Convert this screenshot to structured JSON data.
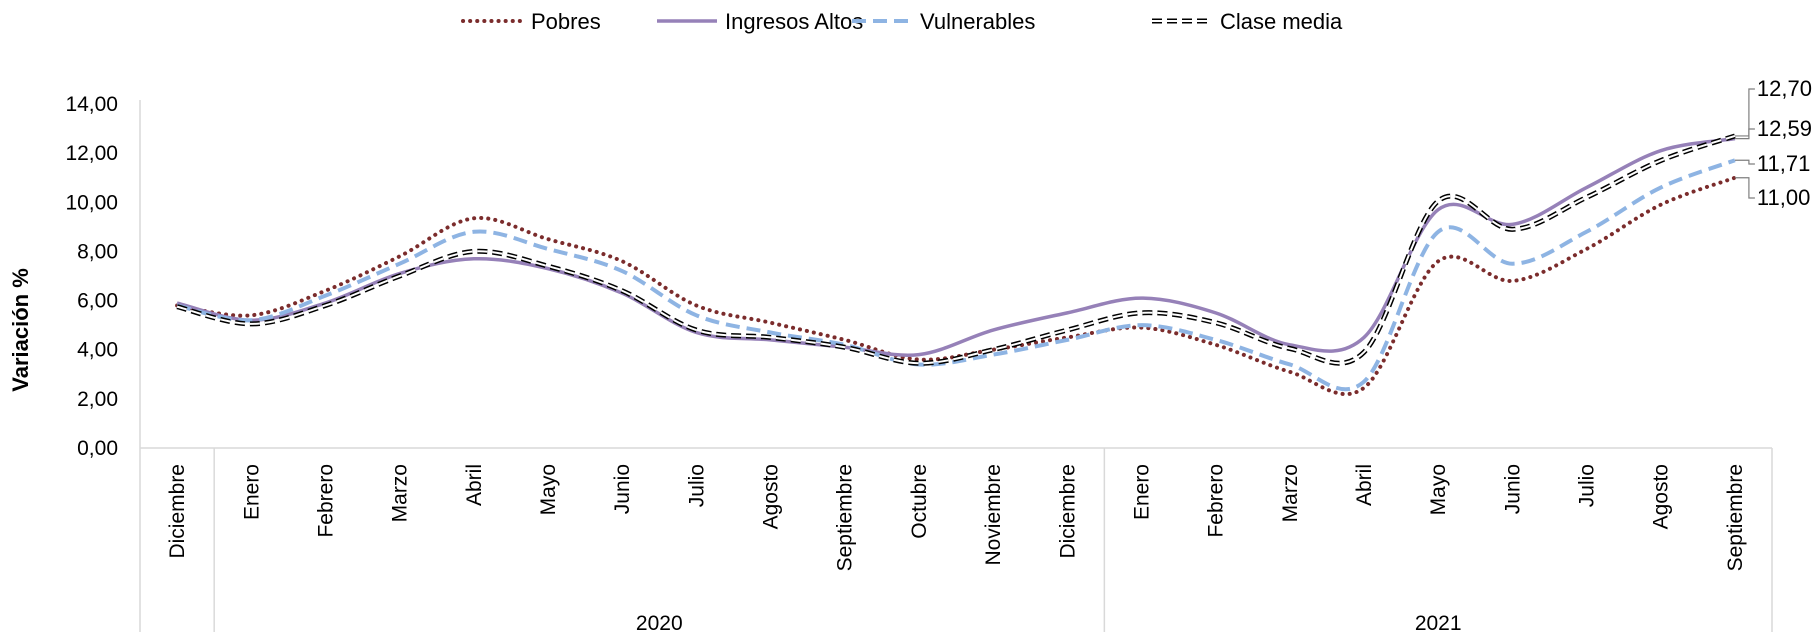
{
  "chart_data": {
    "type": "line",
    "title": "",
    "ylabel": "Variación %",
    "xlabel": "",
    "ylim": [
      0,
      14
    ],
    "y_ticks": [
      "0,00",
      "2,00",
      "4,00",
      "6,00",
      "8,00",
      "10,00",
      "12,00",
      "14,00"
    ],
    "y_tick_values": [
      0,
      2,
      4,
      6,
      8,
      10,
      12,
      14
    ],
    "grid": false,
    "legend_position": "top",
    "categories": [
      "Diciembre",
      "Enero",
      "Febrero",
      "Marzo",
      "Abril",
      "Mayo",
      "Junio",
      "Julio",
      "Agosto",
      "Septiembre",
      "Octubre",
      "Noviembre",
      "Diciembre",
      "Enero",
      "Febrero",
      "Marzo",
      "Abril",
      "Mayo",
      "Junio",
      "Julio",
      "Agosto",
      "Septiembre"
    ],
    "year_groups": [
      {
        "label": "",
        "start": 0,
        "end": 0
      },
      {
        "label": "2020",
        "start": 1,
        "end": 12
      },
      {
        "label": "2021",
        "start": 13,
        "end": 21
      }
    ],
    "series": [
      {
        "name": "Pobres",
        "color": "#7B2C2C",
        "style": "dotted",
        "values": [
          5.8,
          5.4,
          6.4,
          7.8,
          9.35,
          8.5,
          7.6,
          5.8,
          5.1,
          4.4,
          3.6,
          4.0,
          4.5,
          4.9,
          4.2,
          3.1,
          2.45,
          7.6,
          6.8,
          8.1,
          9.9,
          11.0
        ]
      },
      {
        "name": "Ingresos Altos",
        "color": "#9681B8",
        "style": "solid",
        "values": [
          5.9,
          5.2,
          5.9,
          7.1,
          7.7,
          7.3,
          6.3,
          4.7,
          4.4,
          4.1,
          3.8,
          4.8,
          5.5,
          6.1,
          5.5,
          4.2,
          4.5,
          9.7,
          9.1,
          10.6,
          12.1,
          12.59
        ]
      },
      {
        "name": "Vulnerables",
        "color": "#8EB4E3",
        "style": "dashed",
        "values": [
          5.8,
          5.2,
          6.2,
          7.5,
          8.8,
          8.1,
          7.2,
          5.4,
          4.7,
          4.2,
          3.4,
          3.8,
          4.4,
          5.0,
          4.4,
          3.4,
          2.7,
          8.8,
          7.5,
          8.8,
          10.6,
          11.71
        ]
      },
      {
        "name": "Clase media",
        "color": "#000000",
        "style": "double-dash",
        "values": [
          5.75,
          5.05,
          5.8,
          7.0,
          8.0,
          7.4,
          6.4,
          4.8,
          4.5,
          4.1,
          3.45,
          4.0,
          4.8,
          5.5,
          5.1,
          4.05,
          3.9,
          10.05,
          8.9,
          10.2,
          11.7,
          12.7
        ]
      }
    ],
    "end_labels": [
      {
        "series": "Clase media",
        "text": "12,70"
      },
      {
        "series": "Ingresos Altos",
        "text": "12,59"
      },
      {
        "series": "Vulnerables",
        "text": "11,71"
      },
      {
        "series": "Pobres",
        "text": "11,00"
      }
    ]
  }
}
